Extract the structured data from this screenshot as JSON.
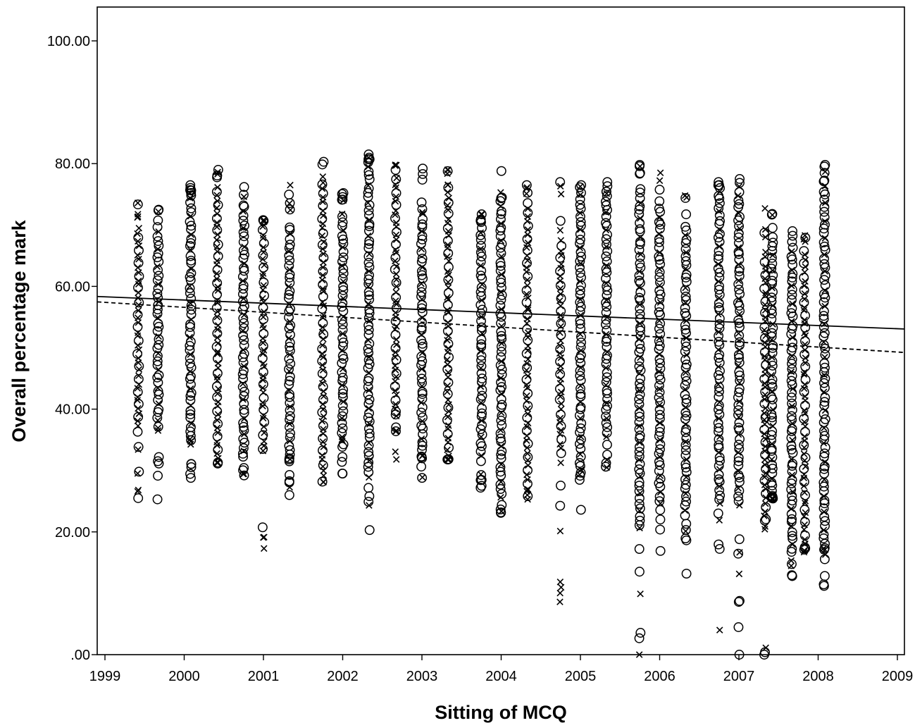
{
  "chart_data": {
    "type": "scatter",
    "title": "",
    "xlabel": "Sitting of MCQ",
    "ylabel": "Overall percentage mark",
    "xlim": [
      1999,
      2009
    ],
    "ylim": [
      0,
      100
    ],
    "x_ticks": [
      1999,
      2000,
      2001,
      2002,
      2003,
      2004,
      2005,
      2006,
      2007,
      2008,
      2009
    ],
    "x_tick_labels": [
      "1999",
      "2000",
      "2001",
      "2002",
      "2003",
      "2004",
      "2005",
      "2006",
      "2007",
      "2008",
      "2009"
    ],
    "y_ticks": [
      0,
      20,
      40,
      60,
      80,
      100
    ],
    "y_tick_labels": [
      ".00",
      "20.00",
      "40.00",
      "60.00",
      "80.00",
      "100.00"
    ],
    "grid": false,
    "legend": "none",
    "sittings": [
      {
        "x": 1999.42,
        "min": 25.5,
        "max": 73.6,
        "core_min": 36.5,
        "core_max": 70.0,
        "marker": "cross"
      },
      {
        "x": 1999.67,
        "min": 25.3,
        "max": 72.5,
        "core_min": 38.0,
        "core_max": 70.0,
        "marker": "circle"
      },
      {
        "x": 2000.08,
        "min": 28.8,
        "max": 76.5,
        "core_min": 35.0,
        "core_max": 75.0,
        "marker": "circle"
      },
      {
        "x": 2000.42,
        "min": 31.3,
        "max": 79.0,
        "core_min": 31.3,
        "core_max": 76.5,
        "marker": "cross"
      },
      {
        "x": 2000.75,
        "min": 29.2,
        "max": 76.2,
        "core_min": 33.0,
        "core_max": 73.0,
        "marker": "circle"
      },
      {
        "x": 2001.0,
        "min": 17.3,
        "max": 70.8,
        "core_min": 33.5,
        "core_max": 70.5,
        "marker": "cross"
      },
      {
        "x": 2001.33,
        "min": 26.0,
        "max": 76.5,
        "core_min": 32.0,
        "core_max": 70.0,
        "marker": "circle"
      },
      {
        "x": 2001.75,
        "min": 28.1,
        "max": 80.3,
        "core_min": 31.0,
        "core_max": 76.5,
        "marker": "cross"
      },
      {
        "x": 2002.0,
        "min": 29.5,
        "max": 75.2,
        "core_min": 35.5,
        "core_max": 72.5,
        "marker": "circle"
      },
      {
        "x": 2002.33,
        "min": 20.3,
        "max": 81.5,
        "core_min": 29.0,
        "core_max": 80.5,
        "marker": "circle"
      },
      {
        "x": 2002.67,
        "min": 31.8,
        "max": 79.8,
        "core_min": 39.5,
        "core_max": 77.5,
        "marker": "cross"
      },
      {
        "x": 2003.0,
        "min": 28.8,
        "max": 79.2,
        "core_min": 32.5,
        "core_max": 72.0,
        "marker": "circle"
      },
      {
        "x": 2003.33,
        "min": 31.8,
        "max": 79.0,
        "core_min": 31.8,
        "core_max": 76.0,
        "marker": "cross"
      },
      {
        "x": 2003.75,
        "min": 27.2,
        "max": 71.8,
        "core_min": 32.5,
        "core_max": 70.5,
        "marker": "circle"
      },
      {
        "x": 2004.0,
        "min": 23.1,
        "max": 78.8,
        "core_min": 25.5,
        "core_max": 74.0,
        "marker": "circle"
      },
      {
        "x": 2004.33,
        "min": 25.3,
        "max": 76.5,
        "core_min": 28.0,
        "core_max": 73.5,
        "marker": "cross"
      },
      {
        "x": 2004.75,
        "min": 8.6,
        "max": 77.0,
        "core_min": 33.0,
        "core_max": 68.0,
        "marker": "cross"
      },
      {
        "x": 2005.0,
        "min": 23.6,
        "max": 76.5,
        "core_min": 30.0,
        "core_max": 75.0,
        "marker": "circle"
      },
      {
        "x": 2005.33,
        "min": 30.5,
        "max": 77.0,
        "core_min": 35.5,
        "core_max": 74.5,
        "marker": "circle"
      },
      {
        "x": 2005.75,
        "min": 0.0,
        "max": 79.8,
        "core_min": 20.5,
        "core_max": 76.5,
        "marker": "circle"
      },
      {
        "x": 2006.0,
        "min": 16.9,
        "max": 78.5,
        "core_min": 26.5,
        "core_max": 73.0,
        "marker": "circle"
      },
      {
        "x": 2006.33,
        "min": 13.2,
        "max": 74.8,
        "core_min": 23.5,
        "core_max": 70.0,
        "marker": "circle"
      },
      {
        "x": 2006.75,
        "min": 4.0,
        "max": 77.0,
        "core_min": 24.5,
        "core_max": 74.5,
        "marker": "circle"
      },
      {
        "x": 2007.0,
        "min": 0.0,
        "max": 77.5,
        "core_min": 24.5,
        "core_max": 75.0,
        "marker": "circle"
      },
      {
        "x": 2007.33,
        "min": 0.0,
        "max": 72.7,
        "core_min": 22.0,
        "core_max": 66.0,
        "marker": "cross"
      },
      {
        "x": 2007.42,
        "min": 25.3,
        "max": 71.8,
        "core_min": 26.0,
        "core_max": 68.0,
        "marker": "circle"
      },
      {
        "x": 2007.67,
        "min": 12.8,
        "max": 69.0,
        "core_min": 18.0,
        "core_max": 66.0,
        "marker": "circle"
      },
      {
        "x": 2007.83,
        "min": 16.7,
        "max": 68.3,
        "core_min": 17.5,
        "core_max": 66.0,
        "marker": "cross"
      },
      {
        "x": 2008.08,
        "min": 11.2,
        "max": 79.8,
        "core_min": 17.5,
        "core_max": 76.5,
        "marker": "circle"
      }
    ],
    "regression_lines": [
      {
        "style": "solid",
        "x": [
          1999,
          2009
        ],
        "y": [
          58.3,
          53.1
        ]
      },
      {
        "style": "dashed",
        "x": [
          1999,
          2009
        ],
        "y": [
          57.4,
          49.3
        ]
      }
    ]
  }
}
